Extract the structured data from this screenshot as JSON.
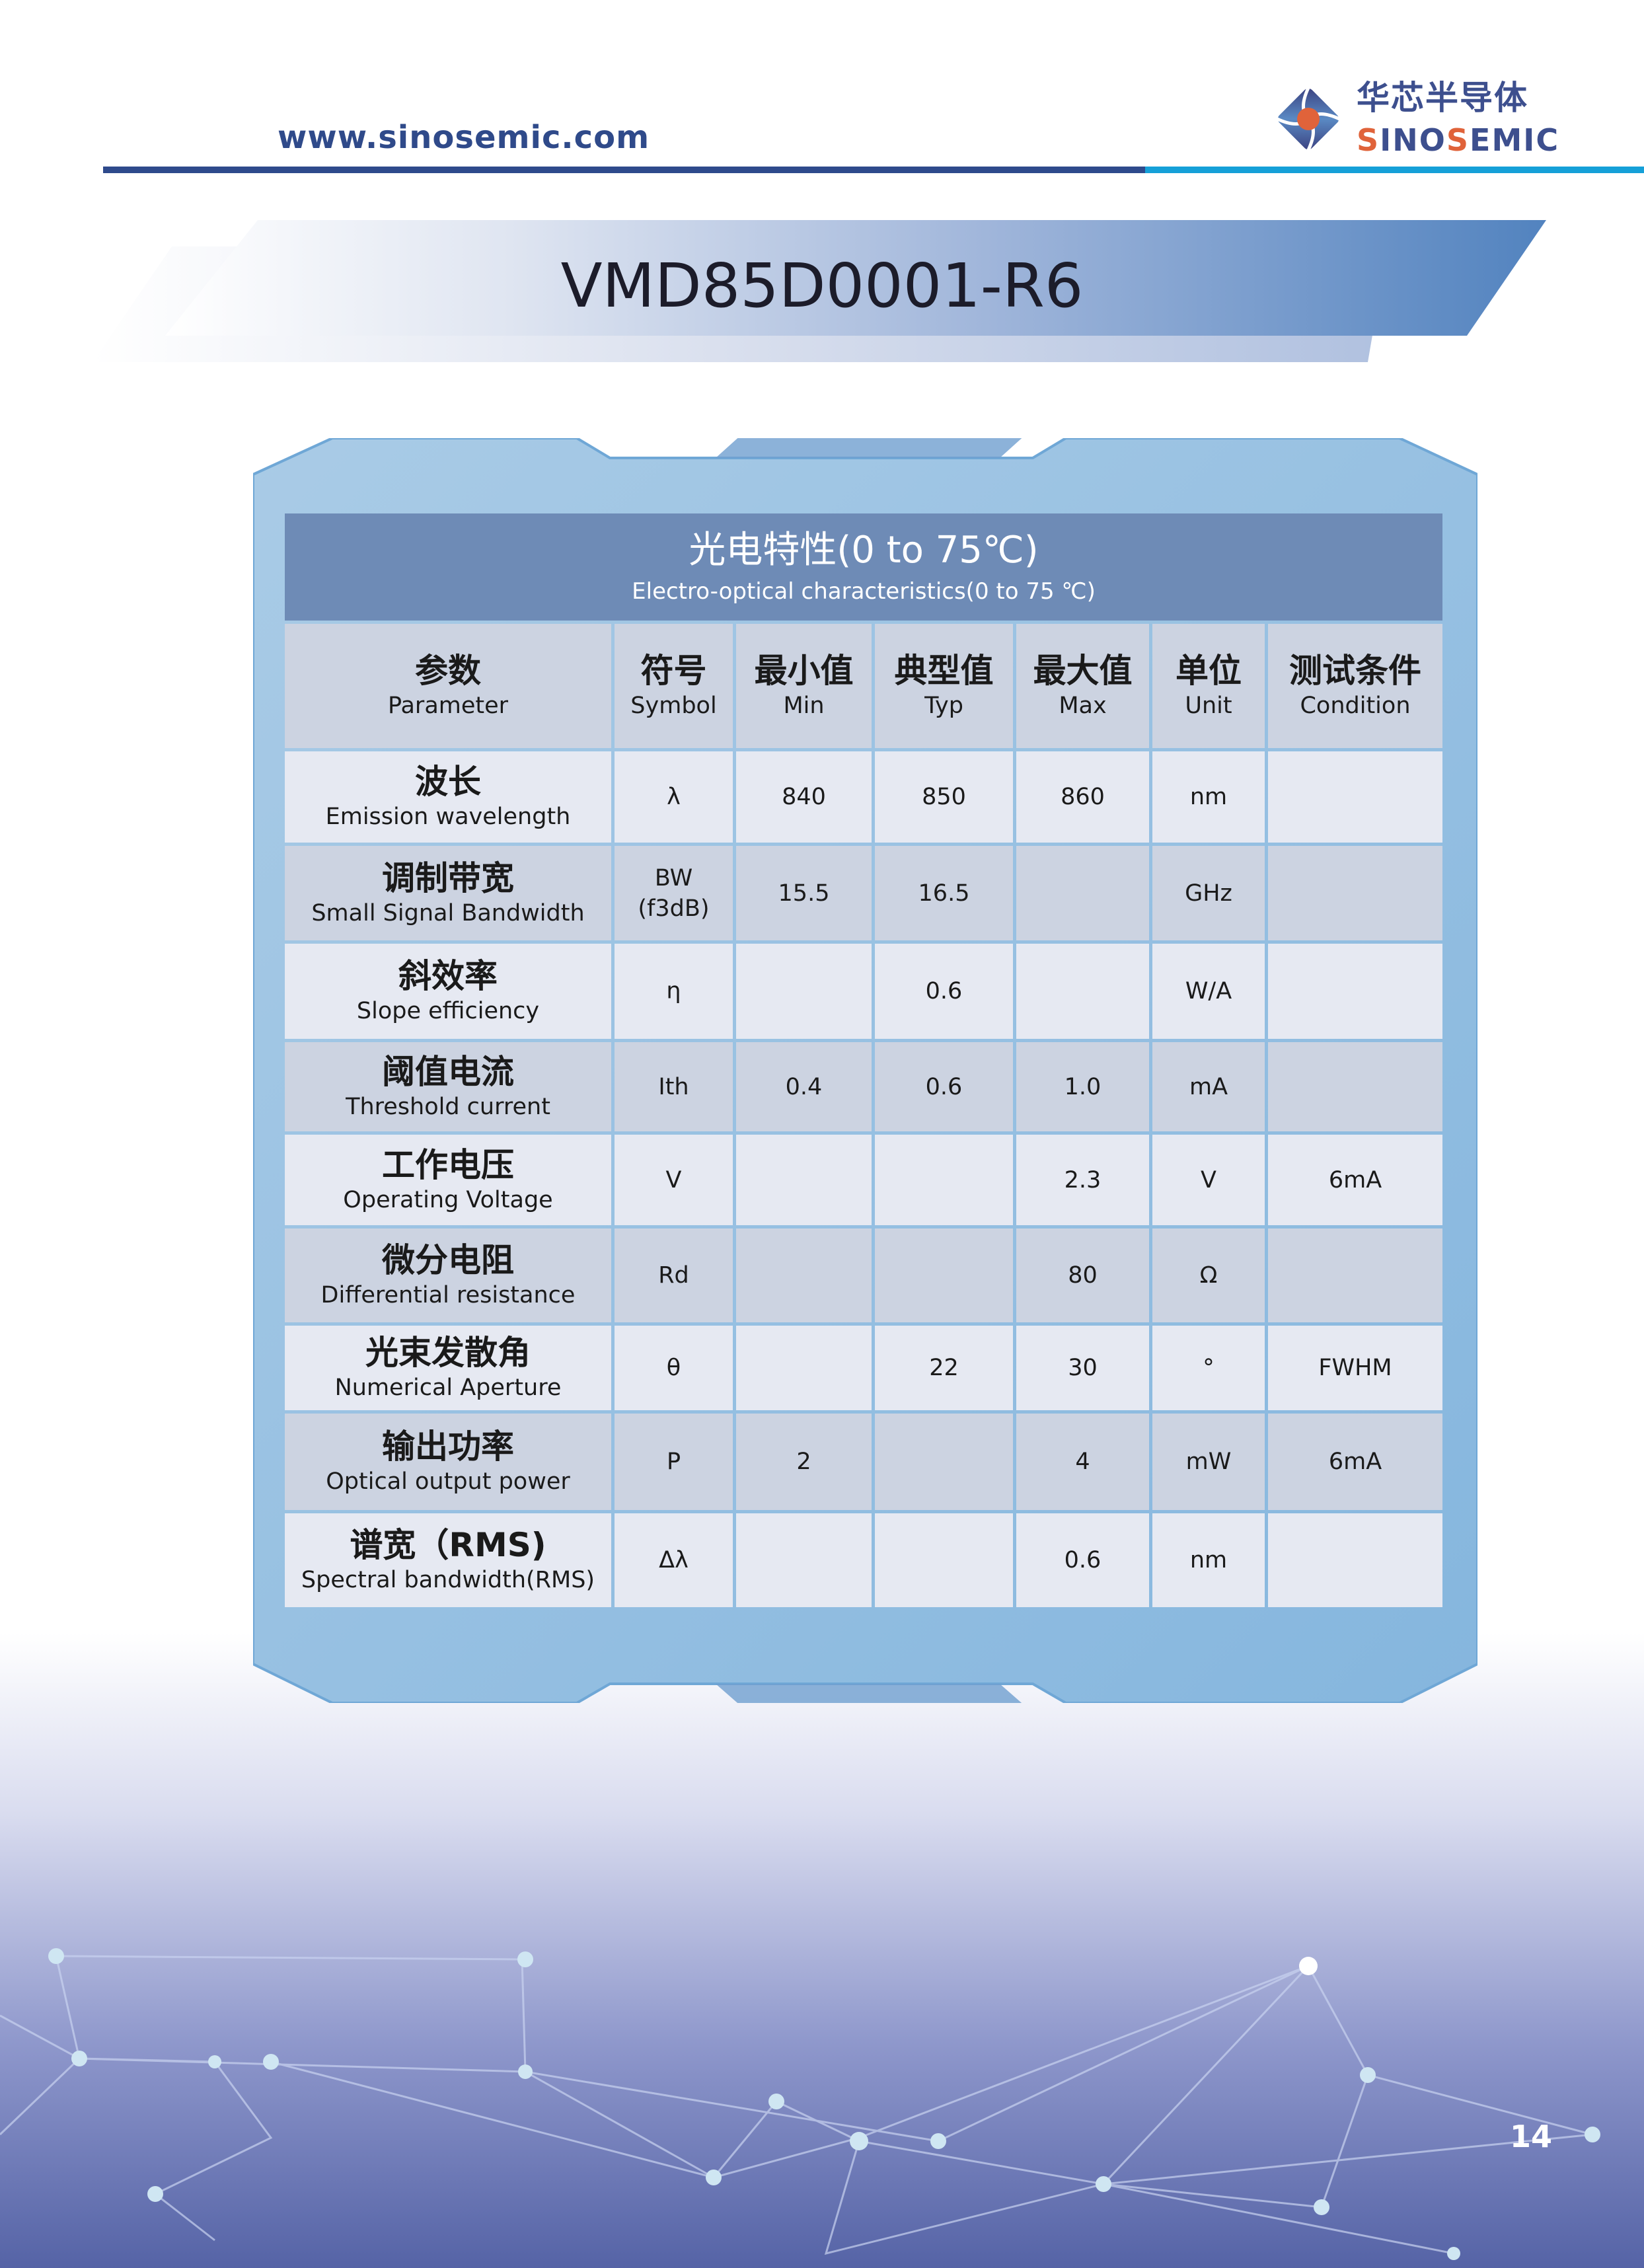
{
  "header": {
    "url": "www.sinosemic.com",
    "logo_cn": "华芯半导体",
    "logo_en": "SINOSEMIC",
    "colors": {
      "dark_blue": "#2e4a8c",
      "cyan": "#15a0d8",
      "logo_orange": "#e0633a"
    }
  },
  "title": "VMD85D0001-R6",
  "table": {
    "title_cn": "光电特性(0 to 75℃)",
    "title_en": "Electro-optical characteristics(0 to 75 ℃)",
    "columns": [
      {
        "cn": "参数",
        "en": "Parameter"
      },
      {
        "cn": "符号",
        "en": "Symbol"
      },
      {
        "cn": "最小值",
        "en": "Min"
      },
      {
        "cn": "典型值",
        "en": "Typ"
      },
      {
        "cn": "最大值",
        "en": "Max"
      },
      {
        "cn": "单位",
        "en": "Unit"
      },
      {
        "cn": "测试条件",
        "en": "Condition"
      }
    ],
    "rows": [
      {
        "cn": "波长",
        "en": "Emission wavelength",
        "symbol": "λ",
        "min": "840",
        "typ": "850",
        "max": "860",
        "unit": "nm",
        "condition": ""
      },
      {
        "cn": "调制带宽",
        "en": "Small Signal Bandwidth",
        "symbol": "BW",
        "symbol2": "(f3dB)",
        "min": "15.5",
        "typ": "16.5",
        "max": "",
        "unit": "GHz",
        "condition": ""
      },
      {
        "cn": "斜效率",
        "en": "Slope efficiency",
        "symbol": "η",
        "min": "",
        "typ": "0.6",
        "max": "",
        "unit": "W/A",
        "condition": ""
      },
      {
        "cn": "阈值电流",
        "en": "Threshold current",
        "symbol": "Ith",
        "min": "0.4",
        "typ": "0.6",
        "max": "1.0",
        "unit": "mA",
        "condition": ""
      },
      {
        "cn": "工作电压",
        "en": "Operating Voltage",
        "symbol": "V",
        "min": "",
        "typ": "",
        "max": "2.3",
        "unit": "V",
        "condition": "6mA"
      },
      {
        "cn": "微分电阻",
        "en": "Differential resistance",
        "symbol": "Rd",
        "min": "",
        "typ": "",
        "max": "80",
        "unit": "Ω",
        "condition": ""
      },
      {
        "cn": "光束发散角",
        "en": "Numerical Aperture",
        "symbol": "θ",
        "min": "",
        "typ": "22",
        "max": "30",
        "unit": "°",
        "condition": "FWHM"
      },
      {
        "cn": "输出功率",
        "en": "Optical output power",
        "symbol": "P",
        "min": "2",
        "typ": "",
        "max": "4",
        "unit": "mW",
        "condition": "6mA"
      },
      {
        "cn": "谱宽（RMS)",
        "en": "Spectral bandwidth(RMS)",
        "symbol": "Δλ",
        "min": "",
        "typ": "",
        "max": "0.6",
        "unit": "nm",
        "condition": ""
      }
    ]
  },
  "page_number": "14"
}
